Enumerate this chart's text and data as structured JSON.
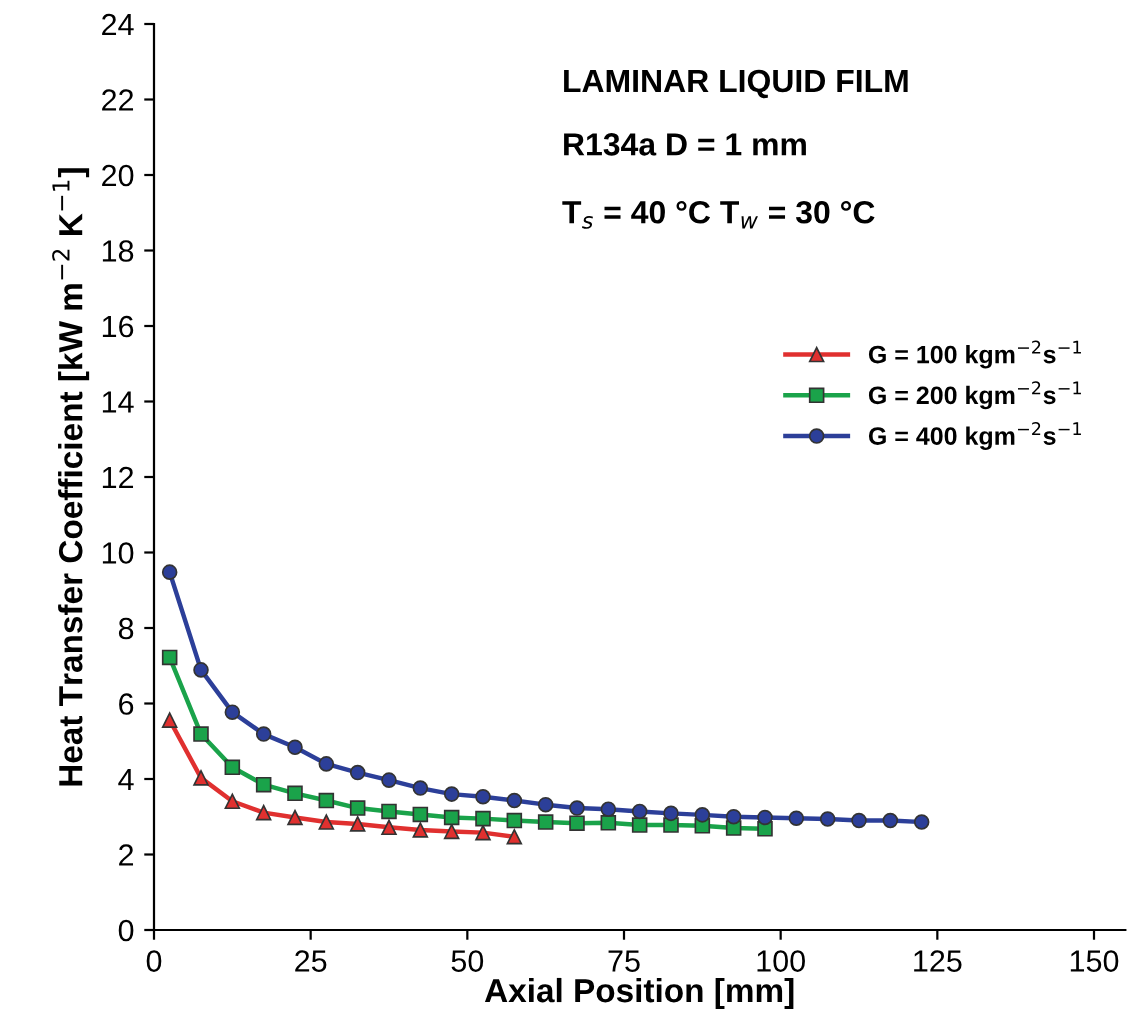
{
  "chart_data": {
    "type": "line",
    "xlabel": "Axial Position [mm]",
    "ylabel": "Heat Transfer Coefficient [kW m$^{−2}$ K$^{−1}$]",
    "annotations": [
      "LAMINAR LIQUID FILM",
      "R134a D = 1 mm",
      "T$_{s}$ = 40 °C T$_{w}$ = 30 °C"
    ],
    "xlim": [
      0,
      155
    ],
    "xticks": [
      0,
      25,
      50,
      75,
      100,
      125,
      150
    ],
    "ylim": [
      0,
      24
    ],
    "yticks": [
      0,
      2,
      4,
      6,
      8,
      10,
      12,
      14,
      16,
      18,
      20,
      22,
      24
    ],
    "grid": false,
    "legend": "center right",
    "line_style": "solid",
    "series": [
      {
        "name": "G = 100 kgm$^{−2}$s$^{−1}$",
        "color": "#e0302f",
        "marker": "triangle",
        "x": [
          2.5,
          7.5,
          12.5,
          17.5,
          22.5,
          27.5,
          32.5,
          37.5,
          42.5,
          47.5,
          52.5,
          57.5
        ],
        "values": [
          5.56,
          4.03,
          3.41,
          3.11,
          2.98,
          2.86,
          2.81,
          2.72,
          2.65,
          2.61,
          2.58,
          2.47
        ]
      },
      {
        "name": "G = 200 kgm$^{−2}$s$^{−1}$",
        "color": "#1aa34a",
        "marker": "square",
        "x": [
          2.5,
          7.5,
          12.5,
          17.5,
          22.5,
          27.5,
          32.5,
          37.5,
          42.5,
          47.5,
          52.5,
          57.5,
          62.5,
          67.5,
          72.5,
          77.5,
          82.5,
          87.5,
          92.5,
          97.5
        ],
        "values": [
          7.22,
          5.19,
          4.31,
          3.85,
          3.62,
          3.43,
          3.23,
          3.14,
          3.06,
          2.98,
          2.95,
          2.9,
          2.86,
          2.83,
          2.84,
          2.78,
          2.78,
          2.76,
          2.7,
          2.68
        ]
      },
      {
        "name": "G = 400 kgm$^{−2}$s$^{−1}$",
        "color": "#2c3f99",
        "marker": "circle",
        "x": [
          2.5,
          7.5,
          12.5,
          17.5,
          22.5,
          27.5,
          32.5,
          37.5,
          42.5,
          47.5,
          52.5,
          57.5,
          62.5,
          67.5,
          72.5,
          77.5,
          82.5,
          87.5,
          92.5,
          97.5,
          102.5,
          107.5,
          112.5,
          117.5,
          122.5
        ],
        "values": [
          9.48,
          6.89,
          5.77,
          5.19,
          4.84,
          4.4,
          4.17,
          3.97,
          3.76,
          3.6,
          3.53,
          3.43,
          3.32,
          3.23,
          3.2,
          3.14,
          3.09,
          3.05,
          3.0,
          2.98,
          2.96,
          2.94,
          2.9,
          2.9,
          2.86
        ]
      }
    ]
  }
}
